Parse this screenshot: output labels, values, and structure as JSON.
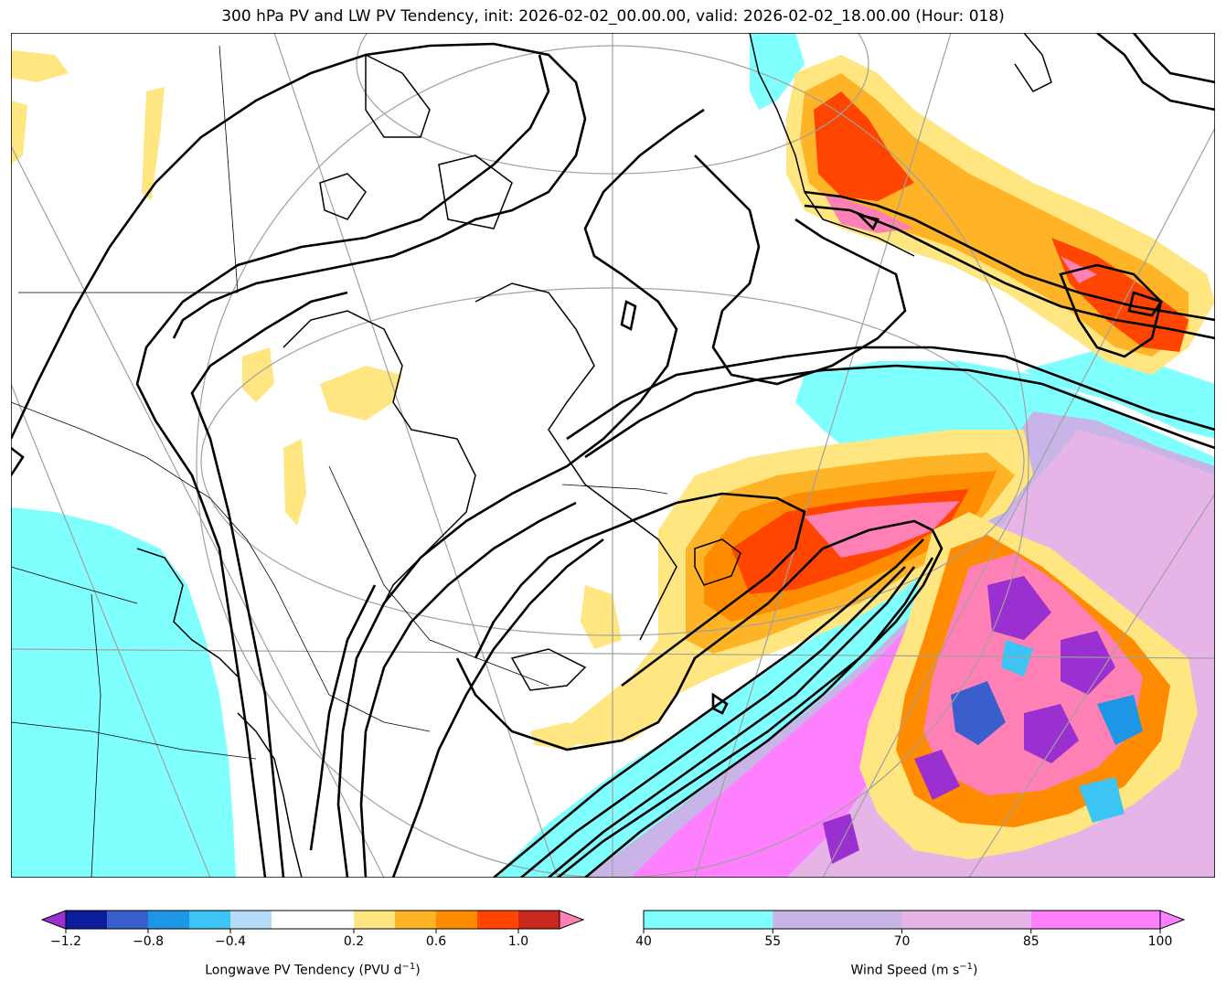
{
  "title": "300 hPa PV and LW PV Tendency, init: 2026-02-02_00.00.00, valid: 2026-02-02_18.00.00 (Hour: 018)",
  "colorbars": {
    "pv_tendency": {
      "label_text": "Longwave PV Tendency (PVU d",
      "label_exp": "−1",
      "label_close": ")",
      "boundaries": [
        -1.2,
        -1.0,
        -0.8,
        -0.6,
        -0.4,
        -0.2,
        0.2,
        0.4,
        0.6,
        0.8,
        1.0,
        1.2
      ],
      "colors": [
        "#0d1c9a",
        "#3a5fcd",
        "#1e96e6",
        "#3cc4f5",
        "#b4dcf8",
        "#ffffff",
        "#ffe680",
        "#ffb428",
        "#ff8c00",
        "#ff4500",
        "#c8281e"
      ],
      "under_color": "#9b30d0",
      "over_color": "#ff80b4",
      "tick_values": [
        -1.2,
        -0.8,
        -0.4,
        0.2,
        0.6,
        1.0
      ],
      "tick_labels": [
        "−1.2",
        "−0.8",
        "−0.4",
        "0.2",
        "0.6",
        "1.0"
      ]
    },
    "wind_speed": {
      "label_text": "Wind Speed (m s",
      "label_exp": "−1",
      "label_close": ")",
      "boundaries": [
        40,
        55,
        70,
        85,
        100
      ],
      "colors": [
        "#80ffff",
        "#c8b4e6",
        "#e6b4e6",
        "#ff80ff"
      ],
      "over_color": "#ff80ff",
      "tick_values": [
        40,
        55,
        70,
        85,
        100
      ],
      "tick_labels": [
        "40",
        "55",
        "70",
        "85",
        "100"
      ]
    }
  }
}
